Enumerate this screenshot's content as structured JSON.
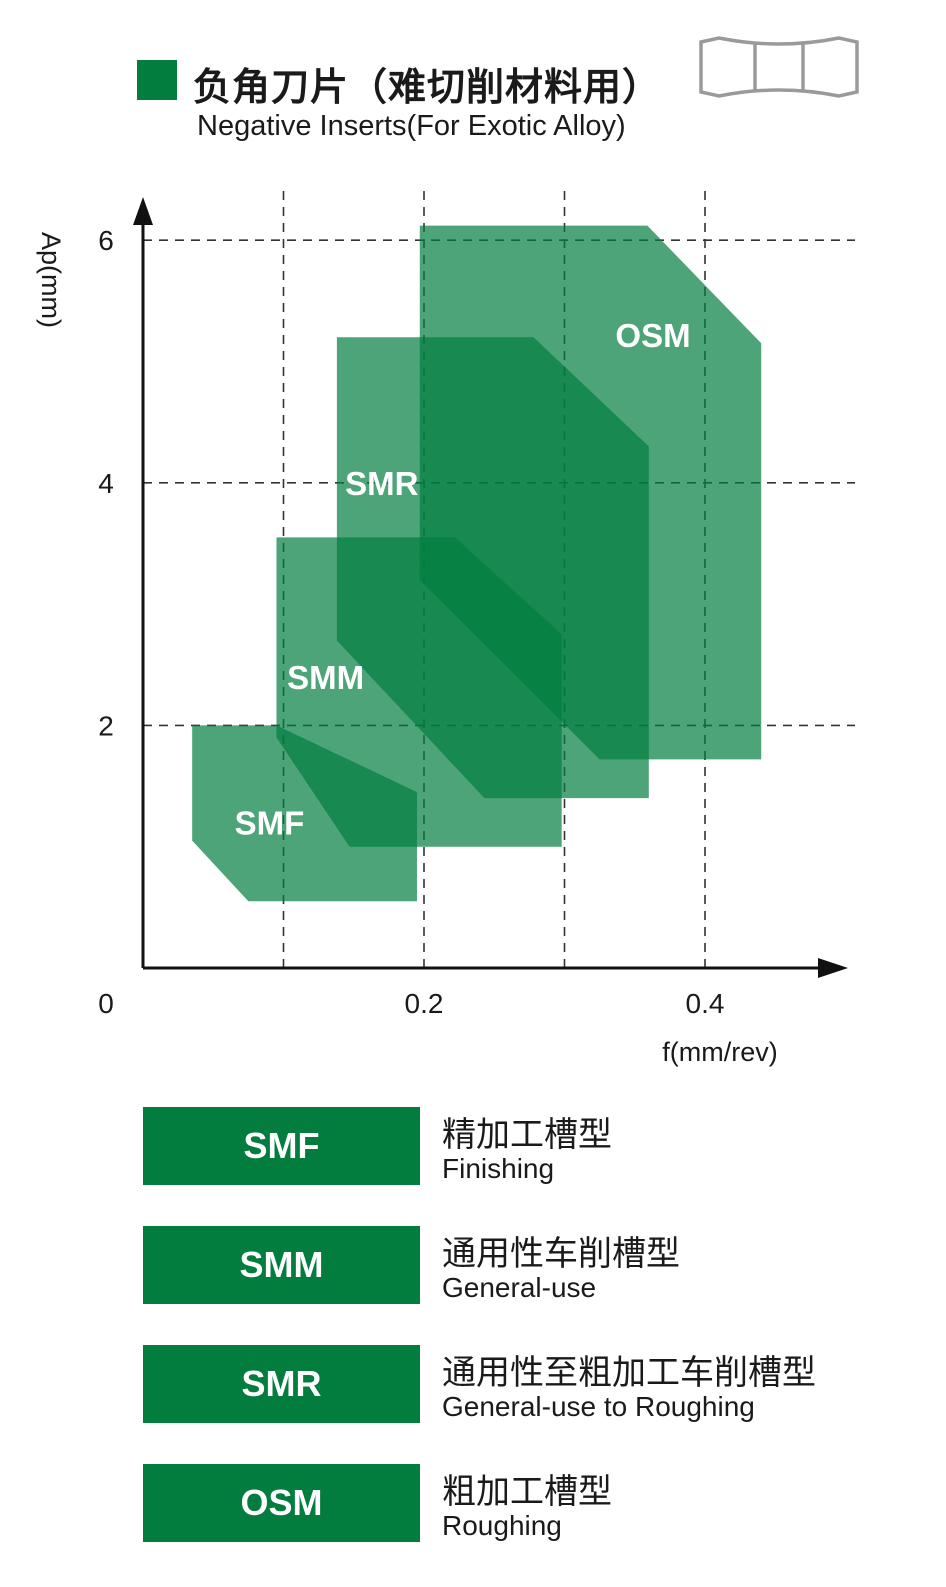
{
  "header": {
    "title_cn": "负角刀片（难切削材料用）",
    "title_en": "Negative Inserts(For Exotic Alloy)",
    "accent_color": "#027d3e",
    "icon": "negative-insert-profile-icon"
  },
  "chart_data": {
    "type": "area",
    "xlabel": "f(mm/rev)",
    "ylabel": "Ap(mm)",
    "x_ticks": [
      "0",
      "0.2",
      "0.4"
    ],
    "y_ticks": [
      "2",
      "4",
      "6"
    ],
    "xlim": [
      0,
      0.5
    ],
    "ylim": [
      0,
      6.3
    ],
    "grid": "dashed",
    "grid_x": [
      0.1,
      0.2,
      0.3,
      0.4
    ],
    "grid_y": [
      2,
      4,
      6
    ],
    "fill_color": "#027d3e",
    "fill_opacity": 0.7,
    "series": [
      {
        "name": "SMF",
        "label_pos": [
          0.09,
          1.1
        ],
        "polygon": [
          [
            0.035,
            2.0
          ],
          [
            0.095,
            2.0
          ],
          [
            0.195,
            1.45
          ],
          [
            0.195,
            0.55
          ],
          [
            0.075,
            0.55
          ],
          [
            0.035,
            1.05
          ]
        ]
      },
      {
        "name": "SMM",
        "label_pos": [
          0.13,
          2.3
        ],
        "polygon": [
          [
            0.095,
            3.55
          ],
          [
            0.222,
            3.55
          ],
          [
            0.298,
            2.75
          ],
          [
            0.298,
            1.0
          ],
          [
            0.147,
            1.0
          ],
          [
            0.095,
            1.9
          ]
        ]
      },
      {
        "name": "SMR",
        "label_pos": [
          0.17,
          3.9
        ],
        "polygon": [
          [
            0.138,
            5.2
          ],
          [
            0.278,
            5.2
          ],
          [
            0.36,
            4.3
          ],
          [
            0.36,
            1.4
          ],
          [
            0.243,
            1.4
          ],
          [
            0.138,
            2.7
          ]
        ]
      },
      {
        "name": "OSM",
        "label_pos": [
          0.363,
          5.12
        ],
        "polygon": [
          [
            0.197,
            6.12
          ],
          [
            0.359,
            6.12
          ],
          [
            0.44,
            5.15
          ],
          [
            0.44,
            1.72
          ],
          [
            0.325,
            1.72
          ],
          [
            0.197,
            3.2
          ]
        ]
      }
    ]
  },
  "legend": [
    {
      "code": "SMF",
      "cn": "精加工槽型",
      "en": "Finishing"
    },
    {
      "code": "SMM",
      "cn": "通用性车削槽型",
      "en": "General-use"
    },
    {
      "code": "SMR",
      "cn": "通用性至粗加工车削槽型",
      "en": "General-use to Roughing"
    },
    {
      "code": "OSM",
      "cn": "粗加工槽型",
      "en": "Roughing"
    }
  ]
}
